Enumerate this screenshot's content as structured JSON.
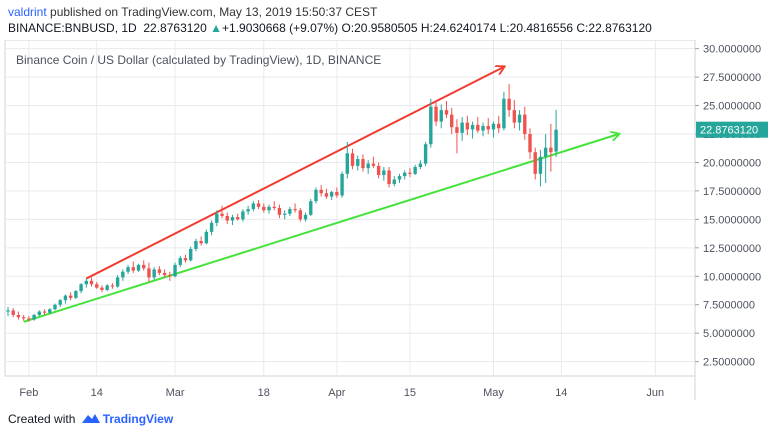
{
  "header": {
    "author": "valdrint",
    "published_text": "published on TradingView.com, May 13, 2019 15:50:37 CEST",
    "symbol": "BINANCE:BNBUSD, 1D",
    "close_value": "22.8763120",
    "change": "+1.9030668 (+9.07%)",
    "o_label": "O:",
    "o": "20.9580505",
    "h_label": "H:",
    "h": "24.6240174",
    "l_label": "L:",
    "l": "20.4816556",
    "c_label": "C:",
    "c": "22.8763120",
    "up_arrow": "▲"
  },
  "chart_data": {
    "type": "candlestick",
    "title": "Binance Coin / US Dollar (calculated by TradingView), 1D, BINANCE",
    "ylim": [
      0,
      31
    ],
    "y_ticks": [
      "30.0000000",
      "27.5000000",
      "25.0000000",
      "22.5000000",
      "20.0000000",
      "17.5000000",
      "15.0000000",
      "12.5000000",
      "10.0000000",
      "7.5000000",
      "5.0000000",
      "2.5000000"
    ],
    "x_ticks": [
      "Feb",
      "14",
      "Mar",
      "18",
      "Apr",
      "15",
      "May",
      "14",
      "Jun"
    ],
    "last_price_label": "22.8763120",
    "start_date": "2019-01-28",
    "candles": [
      {
        "date": "2019-01-28",
        "o": 6.9,
        "h": 7.3,
        "l": 6.5,
        "c": 7.0
      },
      {
        "date": "2019-01-29",
        "o": 7.0,
        "h": 7.2,
        "l": 6.4,
        "c": 6.6
      },
      {
        "date": "2019-01-30",
        "o": 6.6,
        "h": 6.9,
        "l": 6.2,
        "c": 6.4
      },
      {
        "date": "2019-01-31",
        "o": 6.4,
        "h": 6.6,
        "l": 6.1,
        "c": 6.3
      },
      {
        "date": "2019-02-01",
        "o": 6.3,
        "h": 6.5,
        "l": 6.0,
        "c": 6.2
      },
      {
        "date": "2019-02-02",
        "o": 6.2,
        "h": 6.7,
        "l": 6.1,
        "c": 6.6
      },
      {
        "date": "2019-02-03",
        "o": 6.6,
        "h": 7.0,
        "l": 6.5,
        "c": 6.9
      },
      {
        "date": "2019-02-04",
        "o": 6.9,
        "h": 7.1,
        "l": 6.6,
        "c": 6.8
      },
      {
        "date": "2019-02-05",
        "o": 6.8,
        "h": 7.2,
        "l": 6.7,
        "c": 7.1
      },
      {
        "date": "2019-02-06",
        "o": 7.1,
        "h": 7.6,
        "l": 7.0,
        "c": 7.5
      },
      {
        "date": "2019-02-07",
        "o": 7.5,
        "h": 8.0,
        "l": 7.3,
        "c": 7.9
      },
      {
        "date": "2019-02-08",
        "o": 7.9,
        "h": 8.4,
        "l": 7.6,
        "c": 8.3
      },
      {
        "date": "2019-02-09",
        "o": 8.3,
        "h": 8.6,
        "l": 7.9,
        "c": 8.1
      },
      {
        "date": "2019-02-10",
        "o": 8.1,
        "h": 8.8,
        "l": 8.0,
        "c": 8.7
      },
      {
        "date": "2019-02-11",
        "o": 8.7,
        "h": 9.4,
        "l": 8.5,
        "c": 9.3
      },
      {
        "date": "2019-02-12",
        "o": 9.3,
        "h": 9.8,
        "l": 9.0,
        "c": 9.6
      },
      {
        "date": "2019-02-13",
        "o": 9.6,
        "h": 9.9,
        "l": 9.1,
        "c": 9.3
      },
      {
        "date": "2019-02-14",
        "o": 9.3,
        "h": 9.5,
        "l": 8.9,
        "c": 9.0
      },
      {
        "date": "2019-02-15",
        "o": 9.0,
        "h": 9.2,
        "l": 8.6,
        "c": 8.8
      },
      {
        "date": "2019-02-16",
        "o": 8.8,
        "h": 9.3,
        "l": 8.7,
        "c": 9.2
      },
      {
        "date": "2019-02-17",
        "o": 9.2,
        "h": 9.4,
        "l": 8.9,
        "c": 9.1
      },
      {
        "date": "2019-02-18",
        "o": 9.1,
        "h": 10.1,
        "l": 9.0,
        "c": 9.9
      },
      {
        "date": "2019-02-19",
        "o": 9.9,
        "h": 10.6,
        "l": 9.6,
        "c": 10.4
      },
      {
        "date": "2019-02-20",
        "o": 10.4,
        "h": 11.0,
        "l": 10.2,
        "c": 10.8
      },
      {
        "date": "2019-02-21",
        "o": 10.8,
        "h": 11.3,
        "l": 10.3,
        "c": 10.5
      },
      {
        "date": "2019-02-22",
        "o": 10.5,
        "h": 11.1,
        "l": 10.4,
        "c": 11.0
      },
      {
        "date": "2019-02-23",
        "o": 11.0,
        "h": 11.4,
        "l": 10.5,
        "c": 10.7
      },
      {
        "date": "2019-02-24",
        "o": 10.7,
        "h": 11.2,
        "l": 9.5,
        "c": 9.9
      },
      {
        "date": "2019-02-25",
        "o": 9.9,
        "h": 10.8,
        "l": 9.7,
        "c": 10.6
      },
      {
        "date": "2019-02-26",
        "o": 10.6,
        "h": 10.9,
        "l": 10.1,
        "c": 10.3
      },
      {
        "date": "2019-02-27",
        "o": 10.3,
        "h": 10.6,
        "l": 9.9,
        "c": 10.1
      },
      {
        "date": "2019-02-28",
        "o": 10.1,
        "h": 10.4,
        "l": 9.6,
        "c": 10.0
      },
      {
        "date": "2019-03-01",
        "o": 10.0,
        "h": 11.2,
        "l": 9.9,
        "c": 11.0
      },
      {
        "date": "2019-03-02",
        "o": 11.0,
        "h": 11.8,
        "l": 10.8,
        "c": 11.6
      },
      {
        "date": "2019-03-03",
        "o": 11.6,
        "h": 11.9,
        "l": 11.2,
        "c": 11.4
      },
      {
        "date": "2019-03-04",
        "o": 11.4,
        "h": 12.6,
        "l": 11.3,
        "c": 12.4
      },
      {
        "date": "2019-03-05",
        "o": 12.4,
        "h": 13.3,
        "l": 12.2,
        "c": 13.1
      },
      {
        "date": "2019-03-06",
        "o": 13.1,
        "h": 13.5,
        "l": 12.7,
        "c": 12.9
      },
      {
        "date": "2019-03-07",
        "o": 12.9,
        "h": 14.1,
        "l": 12.8,
        "c": 13.9
      },
      {
        "date": "2019-03-08",
        "o": 13.9,
        "h": 14.9,
        "l": 13.6,
        "c": 14.7
      },
      {
        "date": "2019-03-09",
        "o": 14.7,
        "h": 15.8,
        "l": 14.4,
        "c": 15.5
      },
      {
        "date": "2019-03-10",
        "o": 15.5,
        "h": 16.2,
        "l": 15.1,
        "c": 15.3
      },
      {
        "date": "2019-03-11",
        "o": 15.3,
        "h": 15.6,
        "l": 14.6,
        "c": 14.9
      },
      {
        "date": "2019-03-12",
        "o": 14.9,
        "h": 15.4,
        "l": 14.5,
        "c": 15.2
      },
      {
        "date": "2019-03-13",
        "o": 15.2,
        "h": 15.5,
        "l": 14.9,
        "c": 15.0
      },
      {
        "date": "2019-03-14",
        "o": 15.0,
        "h": 15.9,
        "l": 14.8,
        "c": 15.7
      },
      {
        "date": "2019-03-15",
        "o": 15.7,
        "h": 16.2,
        "l": 15.4,
        "c": 15.9
      },
      {
        "date": "2019-03-16",
        "o": 15.9,
        "h": 16.6,
        "l": 15.7,
        "c": 16.4
      },
      {
        "date": "2019-03-17",
        "o": 16.4,
        "h": 16.7,
        "l": 15.9,
        "c": 16.1
      },
      {
        "date": "2019-03-18",
        "o": 16.1,
        "h": 16.4,
        "l": 15.6,
        "c": 15.8
      },
      {
        "date": "2019-03-19",
        "o": 15.8,
        "h": 16.3,
        "l": 15.5,
        "c": 16.1
      },
      {
        "date": "2019-03-20",
        "o": 16.1,
        "h": 16.6,
        "l": 15.8,
        "c": 16.0
      },
      {
        "date": "2019-03-21",
        "o": 16.0,
        "h": 16.3,
        "l": 15.1,
        "c": 15.4
      },
      {
        "date": "2019-03-22",
        "o": 15.4,
        "h": 15.8,
        "l": 15.0,
        "c": 15.5
      },
      {
        "date": "2019-03-23",
        "o": 15.5,
        "h": 16.1,
        "l": 15.3,
        "c": 15.9
      },
      {
        "date": "2019-03-24",
        "o": 15.9,
        "h": 16.4,
        "l": 15.6,
        "c": 15.8
      },
      {
        "date": "2019-03-25",
        "o": 15.8,
        "h": 16.0,
        "l": 14.8,
        "c": 15.0
      },
      {
        "date": "2019-03-26",
        "o": 15.0,
        "h": 15.6,
        "l": 14.8,
        "c": 15.4
      },
      {
        "date": "2019-03-27",
        "o": 15.4,
        "h": 16.8,
        "l": 15.3,
        "c": 16.6
      },
      {
        "date": "2019-03-28",
        "o": 16.6,
        "h": 17.8,
        "l": 16.4,
        "c": 17.6
      },
      {
        "date": "2019-03-29",
        "o": 17.6,
        "h": 18.0,
        "l": 17.0,
        "c": 17.3
      },
      {
        "date": "2019-03-30",
        "o": 17.3,
        "h": 17.7,
        "l": 16.8,
        "c": 17.0
      },
      {
        "date": "2019-03-31",
        "o": 17.0,
        "h": 17.5,
        "l": 16.7,
        "c": 17.4
      },
      {
        "date": "2019-04-01",
        "o": 17.4,
        "h": 17.8,
        "l": 16.9,
        "c": 17.1
      },
      {
        "date": "2019-04-02",
        "o": 17.1,
        "h": 19.2,
        "l": 16.9,
        "c": 19.0
      },
      {
        "date": "2019-04-03",
        "o": 19.0,
        "h": 21.8,
        "l": 18.6,
        "c": 20.8
      },
      {
        "date": "2019-04-04",
        "o": 20.8,
        "h": 21.2,
        "l": 19.4,
        "c": 19.7
      },
      {
        "date": "2019-04-05",
        "o": 19.7,
        "h": 20.6,
        "l": 19.3,
        "c": 20.3
      },
      {
        "date": "2019-04-06",
        "o": 20.3,
        "h": 20.7,
        "l": 19.2,
        "c": 19.5
      },
      {
        "date": "2019-04-07",
        "o": 19.5,
        "h": 20.2,
        "l": 19.0,
        "c": 19.9
      },
      {
        "date": "2019-04-08",
        "o": 19.9,
        "h": 20.5,
        "l": 19.5,
        "c": 19.7
      },
      {
        "date": "2019-04-09",
        "o": 19.7,
        "h": 20.0,
        "l": 18.6,
        "c": 18.9
      },
      {
        "date": "2019-04-10",
        "o": 18.9,
        "h": 19.6,
        "l": 18.4,
        "c": 19.3
      },
      {
        "date": "2019-04-11",
        "o": 19.3,
        "h": 19.6,
        "l": 17.8,
        "c": 18.1
      },
      {
        "date": "2019-04-12",
        "o": 18.1,
        "h": 18.8,
        "l": 17.9,
        "c": 18.5
      },
      {
        "date": "2019-04-13",
        "o": 18.5,
        "h": 19.0,
        "l": 18.2,
        "c": 18.8
      },
      {
        "date": "2019-04-14",
        "o": 18.8,
        "h": 19.3,
        "l": 18.5,
        "c": 19.1
      },
      {
        "date": "2019-04-15",
        "o": 19.1,
        "h": 19.5,
        "l": 18.7,
        "c": 19.0
      },
      {
        "date": "2019-04-16",
        "o": 19.0,
        "h": 19.8,
        "l": 18.9,
        "c": 19.6
      },
      {
        "date": "2019-04-17",
        "o": 19.6,
        "h": 20.2,
        "l": 19.4,
        "c": 19.9
      },
      {
        "date": "2019-04-18",
        "o": 19.9,
        "h": 21.8,
        "l": 19.7,
        "c": 21.6
      },
      {
        "date": "2019-04-19",
        "o": 21.6,
        "h": 25.6,
        "l": 21.3,
        "c": 24.9
      },
      {
        "date": "2019-04-20",
        "o": 24.9,
        "h": 25.4,
        "l": 23.2,
        "c": 23.6
      },
      {
        "date": "2019-04-21",
        "o": 23.6,
        "h": 25.1,
        "l": 23.0,
        "c": 24.6
      },
      {
        "date": "2019-04-22",
        "o": 24.6,
        "h": 25.4,
        "l": 23.9,
        "c": 24.2
      },
      {
        "date": "2019-04-23",
        "o": 24.2,
        "h": 24.8,
        "l": 22.5,
        "c": 23.1
      },
      {
        "date": "2019-04-24",
        "o": 23.1,
        "h": 23.8,
        "l": 20.8,
        "c": 22.6
      },
      {
        "date": "2019-04-25",
        "o": 22.6,
        "h": 24.0,
        "l": 21.9,
        "c": 23.5
      },
      {
        "date": "2019-04-26",
        "o": 23.5,
        "h": 24.1,
        "l": 22.4,
        "c": 22.9
      },
      {
        "date": "2019-04-27",
        "o": 22.9,
        "h": 23.6,
        "l": 22.1,
        "c": 23.3
      },
      {
        "date": "2019-04-28",
        "o": 23.3,
        "h": 24.0,
        "l": 22.6,
        "c": 22.8
      },
      {
        "date": "2019-04-29",
        "o": 22.8,
        "h": 23.5,
        "l": 22.3,
        "c": 23.2
      },
      {
        "date": "2019-04-30",
        "o": 23.2,
        "h": 23.9,
        "l": 22.5,
        "c": 22.9
      },
      {
        "date": "2019-05-01",
        "o": 22.9,
        "h": 23.6,
        "l": 22.2,
        "c": 23.4
      },
      {
        "date": "2019-05-02",
        "o": 23.4,
        "h": 24.1,
        "l": 22.6,
        "c": 23.0
      },
      {
        "date": "2019-05-03",
        "o": 23.0,
        "h": 26.2,
        "l": 22.8,
        "c": 25.6
      },
      {
        "date": "2019-05-04",
        "o": 25.6,
        "h": 26.9,
        "l": 24.0,
        "c": 24.6
      },
      {
        "date": "2019-05-05",
        "o": 24.6,
        "h": 25.5,
        "l": 23.0,
        "c": 23.5
      },
      {
        "date": "2019-05-06",
        "o": 23.5,
        "h": 24.6,
        "l": 22.8,
        "c": 24.2
      },
      {
        "date": "2019-05-07",
        "o": 24.2,
        "h": 24.9,
        "l": 22.0,
        "c": 22.5
      },
      {
        "date": "2019-05-08",
        "o": 22.5,
        "h": 23.0,
        "l": 20.3,
        "c": 20.9
      },
      {
        "date": "2019-05-09",
        "o": 20.9,
        "h": 21.3,
        "l": 18.5,
        "c": 19.0
      },
      {
        "date": "2019-05-10",
        "o": 19.0,
        "h": 21.1,
        "l": 17.9,
        "c": 20.5
      },
      {
        "date": "2019-05-11",
        "o": 20.5,
        "h": 22.5,
        "l": 18.2,
        "c": 21.3
      },
      {
        "date": "2019-05-12",
        "o": 21.3,
        "h": 23.4,
        "l": 19.2,
        "c": 20.9
      },
      {
        "date": "2019-05-13",
        "o": 20.96,
        "h": 24.62,
        "l": 20.48,
        "c": 22.88
      }
    ],
    "trendlines": [
      {
        "color": "#f23b30",
        "from": {
          "date": "2019-02-12",
          "value": 9.8
        },
        "to": {
          "date": "2019-05-03",
          "value": 28.4
        },
        "arrow": true
      },
      {
        "color": "#44e33a",
        "from": {
          "date": "2019-01-31",
          "value": 6.0
        },
        "to": {
          "date": "2019-05-25",
          "value": 22.5
        },
        "arrow": true
      }
    ],
    "colors": {
      "up": "#26a69a",
      "down": "#ef5350",
      "grid": "#e8eaef",
      "axis_text": "#4c525e",
      "label_bg": "#26a69a"
    }
  },
  "footer": {
    "created_with": "Created with",
    "brand": "TradingView"
  }
}
